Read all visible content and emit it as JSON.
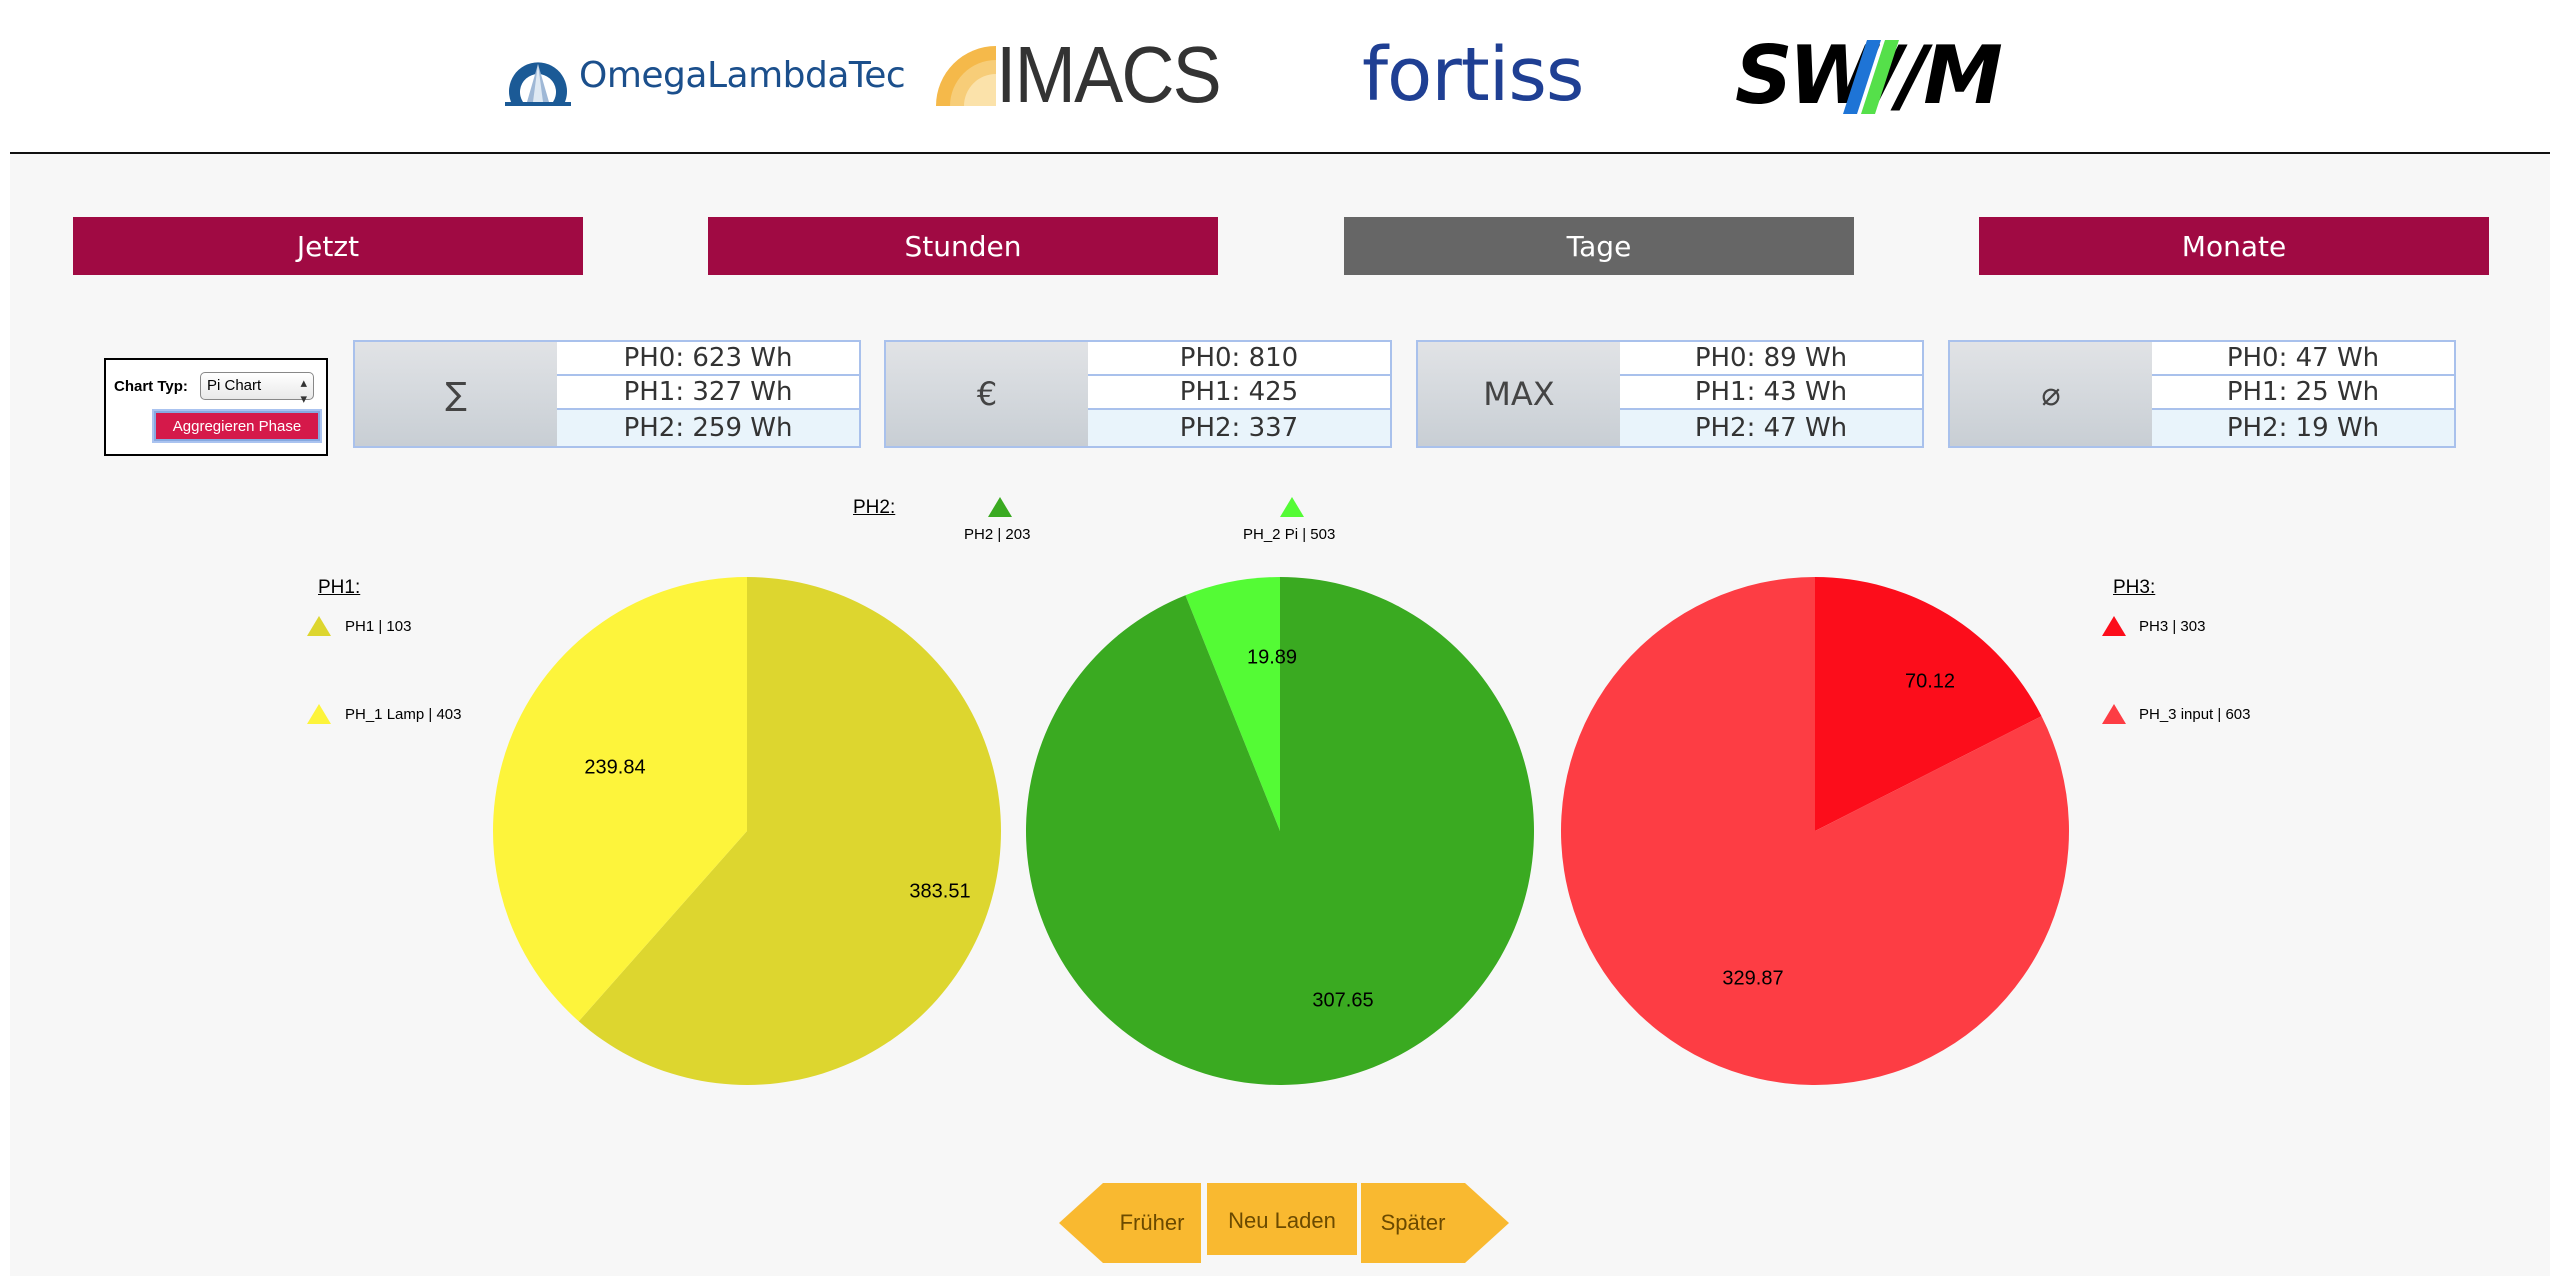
{
  "header": {
    "logos": [
      {
        "name": "omegalambdatec",
        "text": "OmegaLambdaTec"
      },
      {
        "name": "imacs",
        "text": "IMACS"
      },
      {
        "name": "fortiss",
        "text": "fortiss"
      },
      {
        "name": "swm",
        "text": "SW//M"
      }
    ]
  },
  "tabs": [
    {
      "label": "Jetzt",
      "active": true
    },
    {
      "label": "Stunden",
      "active": true
    },
    {
      "label": "Tage",
      "active": false
    },
    {
      "label": "Monate",
      "active": true
    }
  ],
  "chart_type": {
    "label": "Chart Typ:",
    "selected": "Pi Chart",
    "aggregate_button": "Aggregieren Phase"
  },
  "stats": [
    {
      "icon": "∑",
      "rows": [
        "PH0: 623 Wh",
        "PH1: 327 Wh",
        "PH2: 259 Wh"
      ]
    },
    {
      "icon": "€",
      "rows": [
        "PH0: 810",
        "PH1: 425",
        "PH2: 337"
      ]
    },
    {
      "icon": "MAX",
      "rows": [
        "PH0: 89 Wh",
        "PH1: 43 Wh",
        "PH2: 47 Wh"
      ]
    },
    {
      "icon": "⌀",
      "rows": [
        "PH0: 47 Wh",
        "PH1: 25 Wh",
        "PH2: 19 Wh"
      ]
    }
  ],
  "colors": {
    "tab_active": "#a00a43",
    "tab_inactive": "#666666",
    "nav": "#f9b930"
  },
  "chart_data": [
    {
      "type": "pie",
      "title": "PH1:",
      "labels": [
        "PH1 | 103",
        "PH_1 Lamp | 403"
      ],
      "values": [
        383.51,
        239.84
      ],
      "value_labels": [
        "383.51",
        "239.84"
      ],
      "colors": [
        "#ddd62f",
        "#fdf43b"
      ]
    },
    {
      "type": "pie",
      "title": "PH2:",
      "labels": [
        "PH2 | 203",
        "PH_2 Pi | 503"
      ],
      "values": [
        307.65,
        19.89
      ],
      "value_labels": [
        "307.65",
        "19.89"
      ],
      "colors": [
        "#3aaa21",
        "#54fb35"
      ]
    },
    {
      "type": "pie",
      "title": "PH3:",
      "labels": [
        "PH3 | 303",
        "PH_3 input | 603"
      ],
      "values": [
        70.12,
        329.87
      ],
      "value_labels": [
        "70.12",
        "329.87"
      ],
      "colors": [
        "#fc0d1b",
        "#fd3d44"
      ]
    }
  ],
  "nav": {
    "earlier": "Früher",
    "reload": "Neu Laden",
    "later": "Später"
  }
}
